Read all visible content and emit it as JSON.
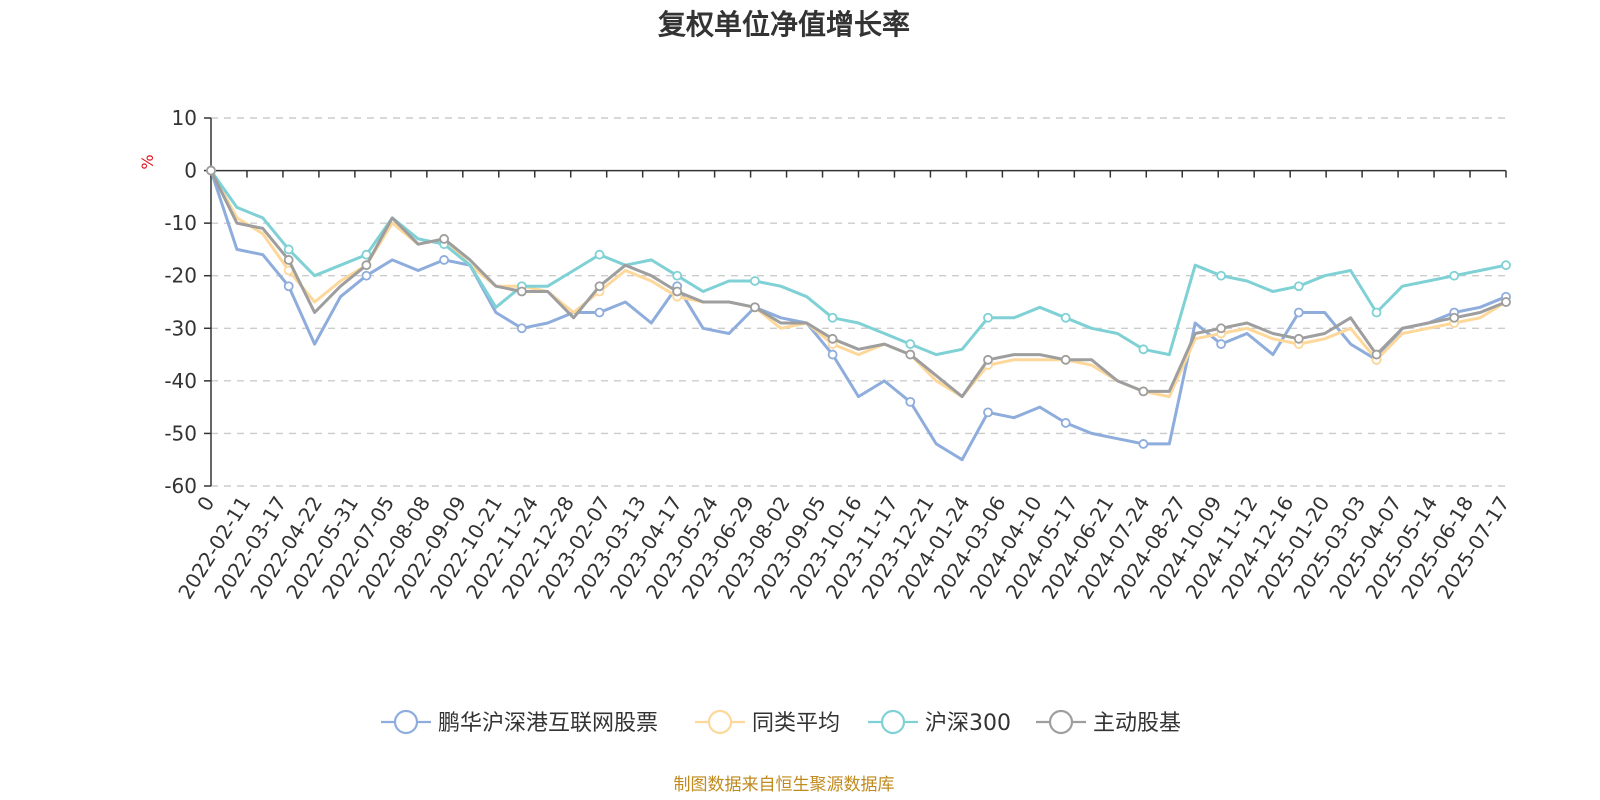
{
  "chart_data": {
    "type": "line",
    "title": "复权单位净值增长率",
    "ylabel": "%",
    "ylim": [
      -60,
      10
    ],
    "yticks": [
      10,
      0,
      -10,
      -20,
      -30,
      -40,
      -50,
      -60
    ],
    "grid": true,
    "legend_position": "bottom",
    "source": "制图数据来自恒生聚源数据库",
    "x_tick_labels": [
      "0",
      "2022-02-11",
      "2022-03-17",
      "2022-04-22",
      "2022-05-31",
      "2022-07-05",
      "2022-08-08",
      "2022-09-09",
      "2022-10-21",
      "2022-11-24",
      "2022-12-28",
      "2023-02-07",
      "2023-03-13",
      "2023-04-17",
      "2023-05-24",
      "2023-06-29",
      "2023-08-02",
      "2023-09-05",
      "2023-10-16",
      "2023-11-17",
      "2023-12-21",
      "2024-01-24",
      "2024-03-06",
      "2024-04-10",
      "2024-05-17",
      "2024-06-21",
      "2024-07-24",
      "2024-08-27",
      "2024-10-09",
      "2024-11-12",
      "2024-12-16",
      "2025-01-20",
      "2025-03-03",
      "2025-04-07",
      "2025-05-14",
      "2025-06-18",
      "2025-07-17"
    ],
    "series": [
      {
        "name": "鹏华沪深港互联网股票",
        "color": "#8eaddc",
        "values": [
          0,
          -15,
          -16,
          -22,
          -33,
          -24,
          -20,
          -17,
          -19,
          -17,
          -18,
          -27,
          -30,
          -29,
          -27,
          -27,
          -25,
          -29,
          -22,
          -30,
          -31,
          -26,
          -28,
          -29,
          -35,
          -43,
          -40,
          -44,
          -52,
          -55,
          -46,
          -47,
          -45,
          -48,
          -50,
          -51,
          -52,
          -52,
          -29,
          -33,
          -31,
          -35,
          -27,
          -27,
          -33,
          -36,
          -30,
          -29,
          -27,
          -26,
          -24
        ]
      },
      {
        "name": "同类平均",
        "color": "#fdd89a",
        "values": [
          0,
          -9,
          -12,
          -19,
          -25,
          -21,
          -18,
          -10,
          -14,
          -13,
          -18,
          -22,
          -22,
          -23,
          -27,
          -23,
          -19,
          -21,
          -24,
          -25,
          -25,
          -26,
          -30,
          -29,
          -33,
          -35,
          -33,
          -35,
          -40,
          -43,
          -37,
          -36,
          -36,
          -36,
          -37,
          -40,
          -42,
          -43,
          -32,
          -31,
          -30,
          -32,
          -33,
          -32,
          -30,
          -36,
          -31,
          -30,
          -29,
          -28,
          -25
        ]
      },
      {
        "name": "沪深300",
        "color": "#7fd1d5",
        "values": [
          0,
          -7,
          -9,
          -15,
          -20,
          -18,
          -16,
          -9,
          -13,
          -14,
          -18,
          -26,
          -22,
          -22,
          -19,
          -16,
          -18,
          -17,
          -20,
          -23,
          -21,
          -21,
          -22,
          -24,
          -28,
          -29,
          -31,
          -33,
          -35,
          -34,
          -28,
          -28,
          -26,
          -28,
          -30,
          -31,
          -34,
          -35,
          -18,
          -20,
          -21,
          -23,
          -22,
          -20,
          -19,
          -27,
          -22,
          -21,
          -20,
          -19,
          -18
        ]
      },
      {
        "name": "主动股基",
        "color": "#9e9e9e",
        "values": [
          0,
          -10,
          -11,
          -17,
          -27,
          -22,
          -18,
          -9,
          -14,
          -13,
          -17,
          -22,
          -23,
          -23,
          -28,
          -22,
          -18,
          -20,
          -23,
          -25,
          -25,
          -26,
          -29,
          -29,
          -32,
          -34,
          -33,
          -35,
          -39,
          -43,
          -36,
          -35,
          -35,
          -36,
          -36,
          -40,
          -42,
          -42,
          -31,
          -30,
          -29,
          -31,
          -32,
          -31,
          -28,
          -35,
          -30,
          -29,
          -28,
          -27,
          -25
        ]
      }
    ]
  }
}
